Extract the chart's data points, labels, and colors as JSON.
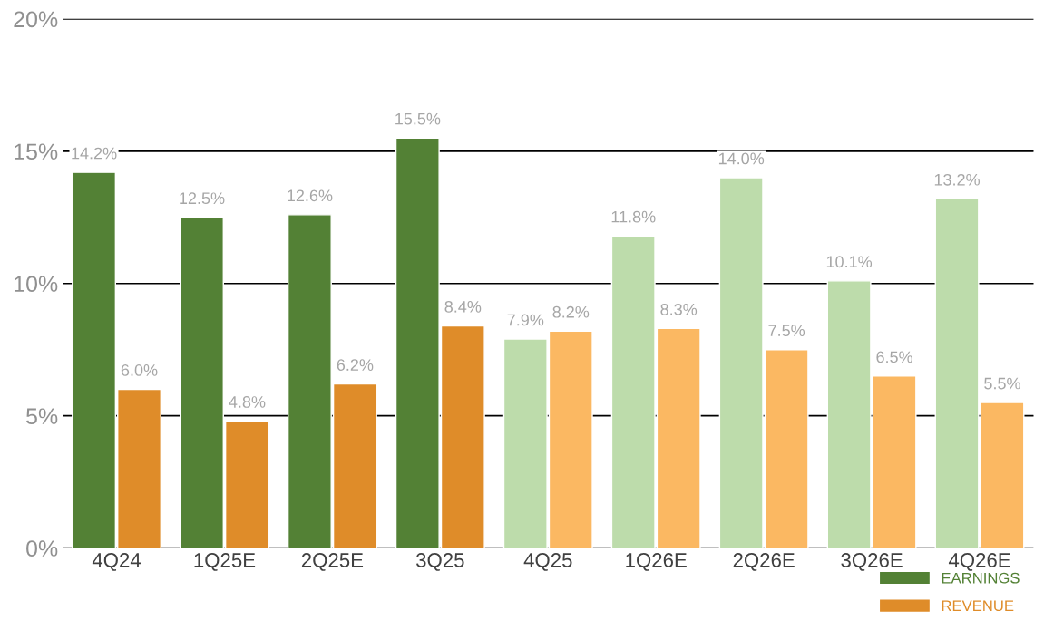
{
  "chart_data": {
    "type": "bar",
    "categories": [
      "4Q24",
      "1Q25E",
      "2Q25E",
      "3Q25",
      "4Q25",
      "1Q26E",
      "2Q26E",
      "3Q26E",
      "4Q26E"
    ],
    "series": [
      {
        "name": "EARNINGS",
        "color": "#538135",
        "colors": [
          "#538135",
          "#538135",
          "#538135",
          "#538135",
          "#bddcab",
          "#bddcab",
          "#bddcab",
          "#bddcab",
          "#bddcab"
        ],
        "values": [
          14.2,
          12.5,
          12.6,
          15.5,
          7.9,
          11.8,
          14.0,
          10.1,
          13.2
        ],
        "value_labels": [
          "14.2%",
          "12.5%",
          "12.6%",
          "15.5%",
          "7.9%",
          "11.8%",
          "14.0%",
          "10.1%",
          "13.2%"
        ]
      },
      {
        "name": "REVENUE",
        "color": "#df8c29",
        "colors": [
          "#df8c29",
          "#df8c29",
          "#df8c29",
          "#df8c29",
          "#fbb862",
          "#fbb862",
          "#fbb862",
          "#fbb862",
          "#fbb862"
        ],
        "values": [
          6.0,
          4.8,
          6.2,
          8.4,
          8.2,
          8.3,
          7.5,
          6.5,
          5.5
        ],
        "value_labels": [
          "6.0%",
          "4.8%",
          "6.2%",
          "8.4%",
          "8.2%",
          "8.3%",
          "7.5%",
          "6.5%",
          "5.5%"
        ]
      }
    ],
    "ylim": [
      0,
      20
    ],
    "yticks": [
      {
        "value": 0,
        "label": "0%"
      },
      {
        "value": 5,
        "label": "5%"
      },
      {
        "value": 10,
        "label": "10%"
      },
      {
        "value": 15,
        "label": "15%"
      },
      {
        "value": 20,
        "label": "20%"
      }
    ],
    "grid": "y",
    "legend": "bottom right"
  }
}
